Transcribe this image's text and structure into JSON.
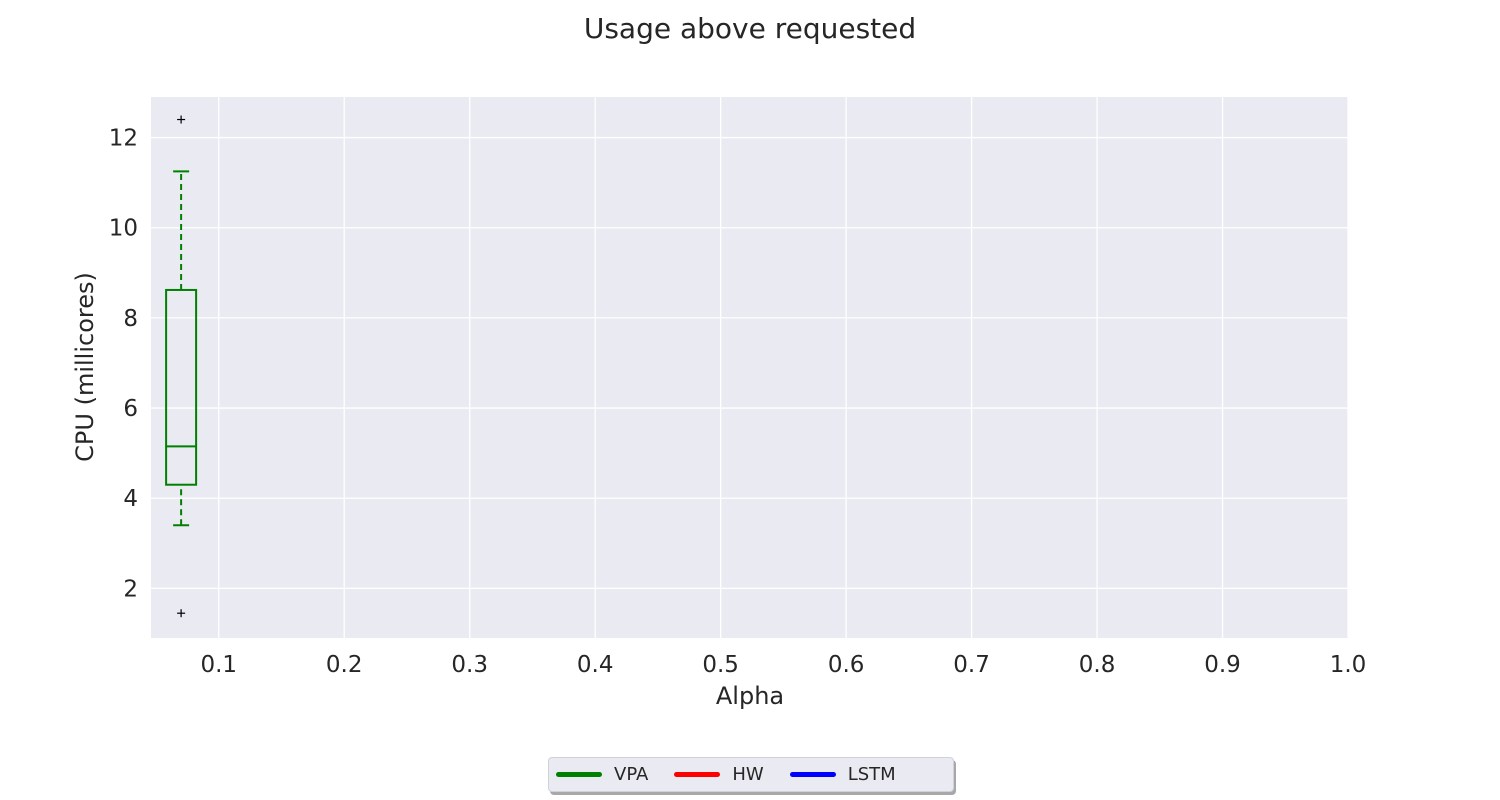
{
  "chart_data": {
    "type": "box",
    "title": "Usage above requested",
    "xlabel": "Alpha",
    "ylabel": "CPU (millicores)",
    "xlim": [
      0.046,
      1.0
    ],
    "ylim": [
      0.9,
      12.9
    ],
    "xticks": [
      "0.1",
      "0.2",
      "0.3",
      "0.4",
      "0.5",
      "0.6",
      "0.7",
      "0.8",
      "0.9",
      "1.0"
    ],
    "yticks": [
      "2",
      "4",
      "6",
      "8",
      "10",
      "12"
    ],
    "grid": true,
    "legend_position": "bottom-center",
    "series": [
      {
        "name": "VPA",
        "color": "#008000",
        "boxes": [
          {
            "x": 0.07,
            "whisker_low": 3.4,
            "q1": 4.3,
            "median": 5.15,
            "q3": 8.62,
            "whisker_high": 11.25,
            "outliers": [
              12.4,
              1.45
            ]
          }
        ]
      },
      {
        "name": "HW",
        "color": "#ff0000",
        "boxes": []
      },
      {
        "name": "LSTM",
        "color": "#0000ff",
        "boxes": []
      }
    ]
  }
}
